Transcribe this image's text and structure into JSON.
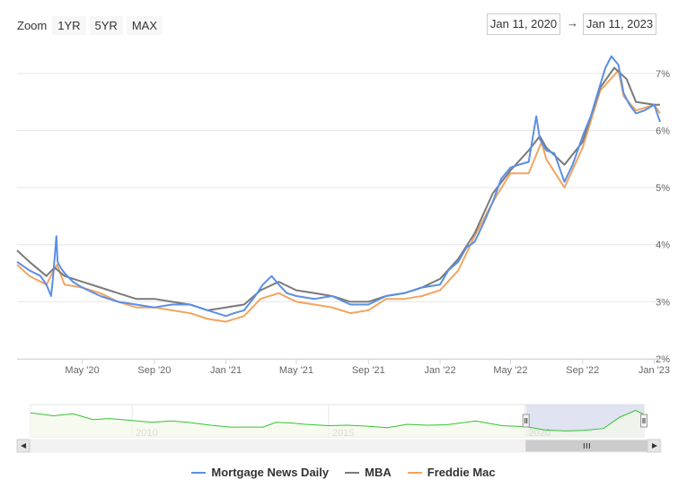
{
  "zoom": {
    "label": "Zoom",
    "buttons": [
      "1YR",
      "5YR",
      "MAX"
    ]
  },
  "range": {
    "from": "Jan 11, 2020",
    "arrow": "→",
    "to": "Jan 11, 2023"
  },
  "colors": {
    "mnd": "#5b8fe6",
    "mba": "#7a7a7a",
    "freddie": "#f0a560",
    "navigator_line": "#35c235",
    "navigator_mask": "#d8dcef"
  },
  "chart_data": {
    "type": "line",
    "x_ticks": [
      "May '20",
      "Sep '20",
      "Jan '21",
      "May '21",
      "Sep '21",
      "Jan '22",
      "May '22",
      "Sep '22",
      "Jan '23"
    ],
    "y_ticks": [
      "2%",
      "3%",
      "4%",
      "5%",
      "6%",
      "7%"
    ],
    "ylim": [
      2,
      7.5
    ],
    "xlim": [
      "2020-01-11",
      "2023-01-11"
    ],
    "series": [
      {
        "name": "Mortgage News Daily",
        "x": [
          "2020-01-11",
          "2020-02-01",
          "2020-02-20",
          "2020-03-01",
          "2020-03-09",
          "2020-03-12",
          "2020-03-18",
          "2020-03-20",
          "2020-03-25",
          "2020-04-01",
          "2020-04-15",
          "2020-05-01",
          "2020-06-01",
          "2020-07-01",
          "2020-08-01",
          "2020-09-01",
          "2020-10-01",
          "2020-11-01",
          "2020-12-01",
          "2021-01-01",
          "2021-01-15",
          "2021-02-01",
          "2021-02-20",
          "2021-03-05",
          "2021-03-20",
          "2021-04-01",
          "2021-04-15",
          "2021-05-01",
          "2021-06-01",
          "2021-07-01",
          "2021-08-01",
          "2021-09-01",
          "2021-10-01",
          "2021-11-01",
          "2021-12-01",
          "2022-01-01",
          "2022-01-15",
          "2022-02-01",
          "2022-02-15",
          "2022-03-01",
          "2022-03-15",
          "2022-04-01",
          "2022-04-15",
          "2022-05-01",
          "2022-05-15",
          "2022-06-01",
          "2022-06-14",
          "2022-06-20",
          "2022-07-01",
          "2022-07-15",
          "2022-08-01",
          "2022-08-15",
          "2022-09-01",
          "2022-09-15",
          "2022-09-28",
          "2022-10-10",
          "2022-10-20",
          "2022-11-01",
          "2022-11-10",
          "2022-11-20",
          "2022-12-01",
          "2022-12-15",
          "2023-01-01",
          "2023-01-11"
        ],
        "values": [
          3.7,
          3.55,
          3.45,
          3.3,
          3.1,
          3.4,
          4.15,
          3.7,
          3.6,
          3.5,
          3.35,
          3.25,
          3.1,
          3.0,
          2.95,
          2.9,
          2.95,
          2.95,
          2.85,
          2.75,
          2.8,
          2.85,
          3.1,
          3.3,
          3.45,
          3.3,
          3.15,
          3.1,
          3.05,
          3.1,
          2.95,
          2.95,
          3.1,
          3.15,
          3.25,
          3.3,
          3.55,
          3.7,
          3.95,
          4.05,
          4.35,
          4.75,
          5.15,
          5.35,
          5.4,
          5.45,
          6.25,
          5.85,
          5.65,
          5.6,
          5.1,
          5.4,
          5.9,
          6.25,
          6.7,
          7.1,
          7.3,
          7.15,
          6.65,
          6.45,
          6.3,
          6.35,
          6.45,
          6.15
        ]
      },
      {
        "name": "MBA",
        "x": [
          "2020-01-11",
          "2020-02-01",
          "2020-03-01",
          "2020-03-15",
          "2020-04-01",
          "2020-05-01",
          "2020-06-01",
          "2020-07-01",
          "2020-08-01",
          "2020-09-01",
          "2020-10-01",
          "2020-11-01",
          "2020-12-01",
          "2021-01-01",
          "2021-02-01",
          "2021-03-01",
          "2021-04-01",
          "2021-05-01",
          "2021-06-01",
          "2021-07-01",
          "2021-08-01",
          "2021-09-01",
          "2021-10-01",
          "2021-11-01",
          "2021-12-01",
          "2022-01-01",
          "2022-02-01",
          "2022-03-01",
          "2022-04-01",
          "2022-05-01",
          "2022-06-01",
          "2022-06-20",
          "2022-07-01",
          "2022-08-01",
          "2022-09-01",
          "2022-10-01",
          "2022-10-25",
          "2022-11-15",
          "2022-12-01",
          "2023-01-01",
          "2023-01-11"
        ],
        "values": [
          3.9,
          3.7,
          3.45,
          3.6,
          3.45,
          3.35,
          3.25,
          3.15,
          3.05,
          3.05,
          3.0,
          2.95,
          2.85,
          2.9,
          2.95,
          3.2,
          3.35,
          3.2,
          3.15,
          3.1,
          3.0,
          3.0,
          3.1,
          3.15,
          3.25,
          3.4,
          3.75,
          4.2,
          4.9,
          5.3,
          5.65,
          5.9,
          5.7,
          5.4,
          5.8,
          6.75,
          7.1,
          6.9,
          6.5,
          6.45,
          6.45
        ]
      },
      {
        "name": "Freddie Mac",
        "x": [
          "2020-01-11",
          "2020-02-01",
          "2020-03-01",
          "2020-03-19",
          "2020-04-01",
          "2020-05-01",
          "2020-06-01",
          "2020-07-01",
          "2020-08-01",
          "2020-09-01",
          "2020-10-01",
          "2020-11-01",
          "2020-12-01",
          "2021-01-01",
          "2021-02-01",
          "2021-03-01",
          "2021-04-01",
          "2021-05-01",
          "2021-06-01",
          "2021-07-01",
          "2021-08-01",
          "2021-09-01",
          "2021-10-01",
          "2021-11-01",
          "2021-12-01",
          "2022-01-01",
          "2022-02-01",
          "2022-03-01",
          "2022-04-01",
          "2022-05-01",
          "2022-06-01",
          "2022-06-23",
          "2022-07-01",
          "2022-08-01",
          "2022-09-01",
          "2022-10-01",
          "2022-11-01",
          "2022-11-10",
          "2022-12-01",
          "2023-01-01",
          "2023-01-11"
        ],
        "values": [
          3.65,
          3.45,
          3.3,
          3.65,
          3.3,
          3.25,
          3.15,
          3.0,
          2.9,
          2.9,
          2.85,
          2.8,
          2.7,
          2.65,
          2.75,
          3.05,
          3.15,
          3.0,
          2.95,
          2.9,
          2.8,
          2.85,
          3.05,
          3.05,
          3.1,
          3.2,
          3.55,
          4.15,
          4.75,
          5.25,
          5.25,
          5.8,
          5.5,
          5.0,
          5.7,
          6.7,
          7.05,
          6.6,
          6.35,
          6.45,
          6.3
        ]
      }
    ],
    "navigator": {
      "x_ticks": [
        "2010",
        "2015",
        "2020"
      ],
      "x_start": "2007-06-01",
      "x_end": "2023-01-11",
      "selected": [
        "2020-01-11",
        "2023-01-11"
      ],
      "series": {
        "x": [
          "2007-06-01",
          "2008-01-01",
          "2008-07-01",
          "2009-01-01",
          "2009-06-01",
          "2010-01-01",
          "2010-07-01",
          "2011-01-01",
          "2011-06-01",
          "2012-01-01",
          "2012-07-01",
          "2013-01-01",
          "2013-05-01",
          "2013-09-01",
          "2014-01-01",
          "2014-06-01",
          "2015-01-01",
          "2015-07-01",
          "2016-01-01",
          "2016-07-01",
          "2017-01-01",
          "2017-07-01",
          "2018-01-01",
          "2018-10-01",
          "2019-06-01",
          "2020-01-11",
          "2020-07-01",
          "2021-01-01",
          "2021-07-01",
          "2022-01-01",
          "2022-06-01",
          "2022-10-25",
          "2023-01-11"
        ],
        "values": [
          6.6,
          6.0,
          6.4,
          5.2,
          5.4,
          5.0,
          4.6,
          4.9,
          4.6,
          4.0,
          3.6,
          3.6,
          3.6,
          4.6,
          4.5,
          4.2,
          3.9,
          4.0,
          3.8,
          3.5,
          4.2,
          4.0,
          4.1,
          4.9,
          3.9,
          3.7,
          3.0,
          2.8,
          2.9,
          3.3,
          5.7,
          7.1,
          6.3
        ]
      }
    }
  },
  "legend": [
    {
      "label": "Mortgage News Daily"
    },
    {
      "label": "MBA"
    },
    {
      "label": "Freddie Mac"
    }
  ]
}
